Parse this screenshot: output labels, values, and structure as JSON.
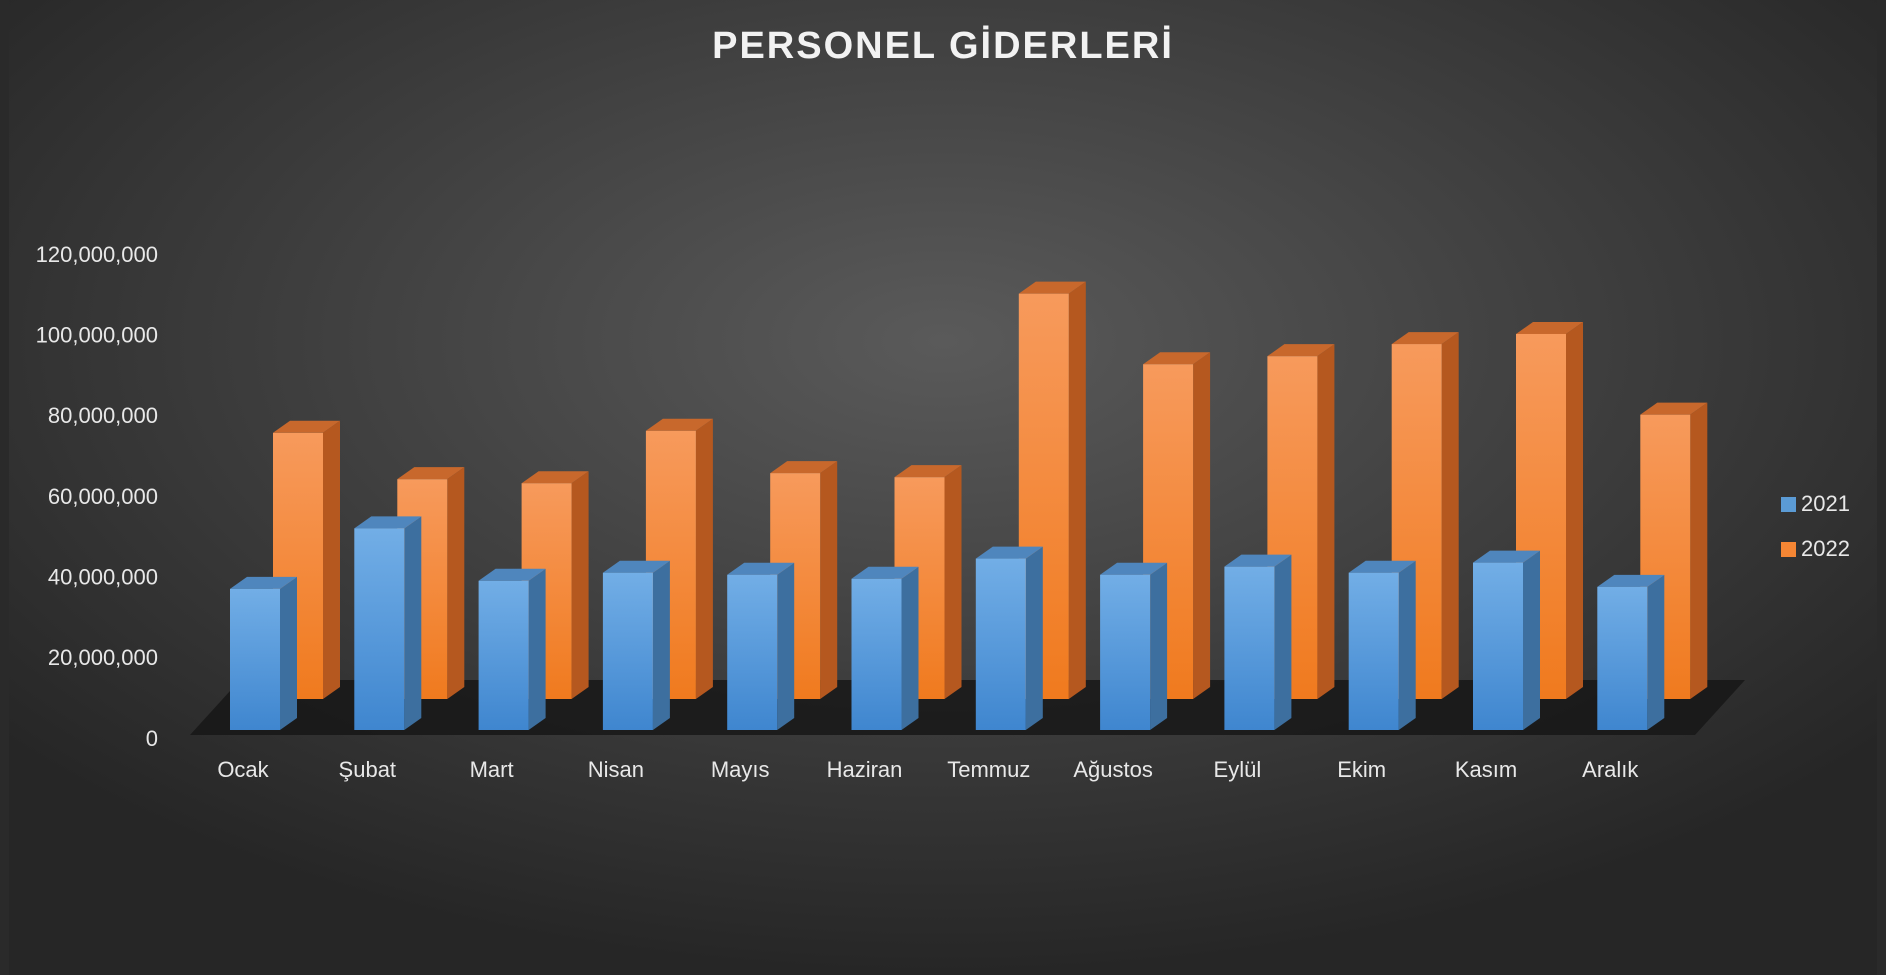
{
  "chart_data": {
    "type": "bar3d",
    "title": "PERSONEL GİDERLERİ",
    "categories": [
      "Ocak",
      "Şubat",
      "Mart",
      "Nisan",
      "Mayıs",
      "Haziran",
      "Temmuz",
      "Ağustos",
      "Eylül",
      "Ekim",
      "Kasım",
      "Aralık"
    ],
    "series": [
      {
        "name": "2021",
        "color": "#5b9bd5",
        "values": [
          35000000,
          50000000,
          37000000,
          39000000,
          38500000,
          37500000,
          42500000,
          38500000,
          40500000,
          39000000,
          41500000,
          35500000
        ]
      },
      {
        "name": "2022",
        "color": "#f58634",
        "values": [
          66000000,
          54500000,
          53500000,
          66500000,
          56000000,
          55000000,
          100500000,
          83000000,
          85000000,
          88000000,
          90500000,
          70500000
        ]
      }
    ],
    "ylim": [
      0,
      120000000
    ],
    "yticks": [
      {
        "value": 0,
        "label": "0"
      },
      {
        "value": 20000000,
        "label": "20,000,000"
      },
      {
        "value": 40000000,
        "label": "40,000,000"
      },
      {
        "value": 60000000,
        "label": "60,000,000"
      },
      {
        "value": 80000000,
        "label": "80,000,000"
      },
      {
        "value": 100000000,
        "label": "100,000,000"
      },
      {
        "value": 120000000,
        "label": "120,000,000"
      }
    ],
    "legend": "right"
  }
}
